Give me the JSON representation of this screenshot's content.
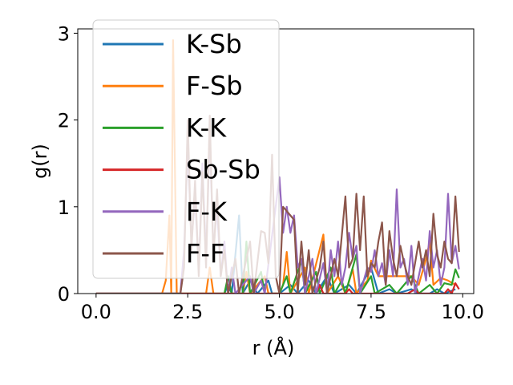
{
  "chart_data": {
    "type": "line",
    "title": "",
    "xlabel": "r (Å)",
    "ylabel": "g(r)",
    "xlim": [
      -0.5,
      10.3
    ],
    "ylim": [
      0,
      3.05
    ],
    "xticks": [
      0.0,
      2.5,
      5.0,
      7.5,
      10.0
    ],
    "xtick_labels": [
      "0.0",
      "2.5",
      "5.0",
      "7.5",
      "10.0"
    ],
    "yticks": [
      0,
      1,
      2,
      3
    ],
    "ytick_labels": [
      "0",
      "1",
      "2",
      "3"
    ],
    "grid": false,
    "legend_position": "upper-left",
    "series": [
      {
        "name": "K-Sb",
        "color": "#1f77b4",
        "points": [
          [
            0.0,
            0
          ],
          [
            3.5,
            0
          ],
          [
            3.6,
            0.1
          ],
          [
            3.7,
            0
          ],
          [
            3.9,
            0.9
          ],
          [
            4.0,
            0
          ],
          [
            4.2,
            0.15
          ],
          [
            4.4,
            0
          ],
          [
            4.7,
            0.15
          ],
          [
            4.8,
            0
          ],
          [
            5.0,
            0
          ],
          [
            5.3,
            0.1
          ],
          [
            5.5,
            0
          ],
          [
            5.8,
            0.15
          ],
          [
            6.0,
            0
          ],
          [
            6.3,
            0.2
          ],
          [
            6.5,
            0
          ],
          [
            6.9,
            0.1
          ],
          [
            7.1,
            0
          ],
          [
            7.5,
            0.3
          ],
          [
            7.7,
            0
          ],
          [
            8.0,
            0.05
          ],
          [
            8.2,
            0
          ],
          [
            8.6,
            0.05
          ],
          [
            8.8,
            0
          ],
          [
            9.1,
            0
          ],
          [
            9.3,
            0.05
          ],
          [
            9.5,
            0
          ],
          [
            9.8,
            0.05
          ]
        ]
      },
      {
        "name": "F-Sb",
        "color": "#ff7f0e",
        "points": [
          [
            0.0,
            0
          ],
          [
            1.8,
            0
          ],
          [
            1.9,
            0.15
          ],
          [
            2.0,
            0.9
          ],
          [
            2.05,
            0
          ],
          [
            2.1,
            2.92
          ],
          [
            2.2,
            0
          ],
          [
            3.0,
            0
          ],
          [
            3.1,
            0.3
          ],
          [
            3.2,
            0
          ],
          [
            4.0,
            0
          ],
          [
            4.1,
            0.25
          ],
          [
            4.2,
            0
          ],
          [
            4.6,
            0.2
          ],
          [
            4.7,
            0
          ],
          [
            5.0,
            0
          ],
          [
            5.1,
            0.1
          ],
          [
            5.2,
            0.48
          ],
          [
            5.3,
            0
          ],
          [
            5.7,
            0.3
          ],
          [
            5.8,
            0
          ],
          [
            6.2,
            0.68
          ],
          [
            6.3,
            0
          ],
          [
            6.6,
            0.2
          ],
          [
            6.8,
            0
          ],
          [
            7.0,
            0.28
          ],
          [
            7.1,
            0
          ],
          [
            7.4,
            0.15
          ],
          [
            7.5,
            0.38
          ],
          [
            7.7,
            0.2
          ],
          [
            8.6,
            0.2
          ],
          [
            8.8,
            0.1
          ],
          [
            9.0,
            0.4
          ],
          [
            9.1,
            0.6
          ],
          [
            9.2,
            0.1
          ],
          [
            9.4,
            0.18
          ],
          [
            9.6,
            0.15
          ],
          [
            9.8,
            0.1
          ]
        ]
      },
      {
        "name": "K-K",
        "color": "#2ca02c",
        "points": [
          [
            0.0,
            0
          ],
          [
            3.5,
            0
          ],
          [
            3.6,
            0.2
          ],
          [
            3.7,
            0
          ],
          [
            4.0,
            0
          ],
          [
            4.1,
            0.6
          ],
          [
            4.2,
            0
          ],
          [
            4.5,
            0.25
          ],
          [
            4.6,
            0
          ],
          [
            5.0,
            0
          ],
          [
            5.2,
            0.2
          ],
          [
            5.3,
            0
          ],
          [
            5.6,
            0.38
          ],
          [
            5.7,
            0
          ],
          [
            6.0,
            0.25
          ],
          [
            6.1,
            0
          ],
          [
            6.4,
            0.3
          ],
          [
            6.5,
            0
          ],
          [
            6.7,
            0.15
          ],
          [
            6.8,
            0
          ],
          [
            7.1,
            0.45
          ],
          [
            7.2,
            0
          ],
          [
            7.5,
            0.2
          ],
          [
            7.6,
            0
          ],
          [
            8.0,
            0.1
          ],
          [
            8.2,
            0
          ],
          [
            8.6,
            0.2
          ],
          [
            8.8,
            0
          ],
          [
            9.1,
            0.1
          ],
          [
            9.3,
            0
          ],
          [
            9.5,
            0.12
          ],
          [
            9.7,
            0.1
          ],
          [
            9.8,
            0.28
          ],
          [
            9.9,
            0.18
          ]
        ]
      },
      {
        "name": "Sb-Sb",
        "color": "#d62728",
        "points": [
          [
            0.0,
            0
          ],
          [
            6.0,
            0
          ],
          [
            6.1,
            0.1
          ],
          [
            6.2,
            0
          ],
          [
            6.8,
            0
          ],
          [
            6.9,
            0.05
          ],
          [
            7.0,
            0
          ],
          [
            8.5,
            0
          ],
          [
            8.7,
            0.05
          ],
          [
            8.8,
            0
          ],
          [
            9.5,
            0
          ],
          [
            9.6,
            0.05
          ],
          [
            9.7,
            0
          ],
          [
            9.8,
            0.12
          ],
          [
            9.9,
            0.05
          ]
        ]
      },
      {
        "name": "F-K",
        "color": "#9467bd",
        "points": [
          [
            0.0,
            0
          ],
          [
            2.3,
            0
          ],
          [
            2.4,
            0.5
          ],
          [
            2.5,
            1.7
          ],
          [
            2.6,
            0.6
          ],
          [
            2.7,
            1.1
          ],
          [
            2.8,
            0.3
          ],
          [
            2.9,
            1.5
          ],
          [
            3.0,
            0.4
          ],
          [
            3.1,
            1.8
          ],
          [
            3.2,
            0.5
          ],
          [
            3.3,
            1.0
          ],
          [
            3.4,
            0.2
          ],
          [
            3.5,
            0.6
          ],
          [
            3.6,
            0
          ],
          [
            3.7,
            0.3
          ],
          [
            3.8,
            0
          ],
          [
            4.2,
            0.2
          ],
          [
            4.3,
            0
          ],
          [
            4.5,
            0.15
          ],
          [
            4.6,
            0
          ],
          [
            5.0,
            1.34
          ],
          [
            5.1,
            0.7
          ],
          [
            5.2,
            1.0
          ],
          [
            5.3,
            0.7
          ],
          [
            5.4,
            0.9
          ],
          [
            5.5,
            0.3
          ],
          [
            5.6,
            0.4
          ],
          [
            5.7,
            0
          ],
          [
            5.9,
            0.4
          ],
          [
            6.0,
            0
          ],
          [
            6.2,
            0.35
          ],
          [
            6.3,
            0
          ],
          [
            6.4,
            0.5
          ],
          [
            6.5,
            0.2
          ],
          [
            6.6,
            0.6
          ],
          [
            6.7,
            0.1
          ],
          [
            6.8,
            0.3
          ],
          [
            6.9,
            0.7
          ],
          [
            7.0,
            0.4
          ],
          [
            7.1,
            0.55
          ],
          [
            7.2,
            0
          ],
          [
            7.4,
            0.3
          ],
          [
            7.5,
            0.25
          ],
          [
            7.6,
            0.5
          ],
          [
            7.7,
            0.2
          ],
          [
            7.8,
            0.35
          ],
          [
            7.9,
            0.1
          ],
          [
            8.0,
            0.5
          ],
          [
            8.1,
            0.2
          ],
          [
            8.2,
            1.2
          ],
          [
            8.3,
            0.3
          ],
          [
            8.4,
            0.4
          ],
          [
            8.5,
            0.1
          ],
          [
            8.6,
            0.55
          ],
          [
            8.7,
            0
          ],
          [
            8.9,
            0.4
          ],
          [
            9.0,
            0.15
          ],
          [
            9.1,
            0.72
          ],
          [
            9.2,
            0.3
          ],
          [
            9.3,
            0.5
          ],
          [
            9.4,
            0.1
          ],
          [
            9.5,
            0.3
          ],
          [
            9.6,
            1.15
          ],
          [
            9.7,
            0.35
          ],
          [
            9.8,
            0.55
          ],
          [
            9.9,
            0.28
          ]
        ]
      },
      {
        "name": "F-F",
        "color": "#8c564b",
        "points": [
          [
            0.0,
            0
          ],
          [
            2.3,
            0
          ],
          [
            2.4,
            0.3
          ],
          [
            2.5,
            2.0
          ],
          [
            2.6,
            0.5
          ],
          [
            2.7,
            1.3
          ],
          [
            2.8,
            0.2
          ],
          [
            2.9,
            1.4
          ],
          [
            3.0,
            0.3
          ],
          [
            3.1,
            2.05
          ],
          [
            3.2,
            0.4
          ],
          [
            3.3,
            1.2
          ],
          [
            3.4,
            0.2
          ],
          [
            3.5,
            0.5
          ],
          [
            3.6,
            0
          ],
          [
            3.8,
            0.4
          ],
          [
            3.9,
            0
          ],
          [
            4.2,
            0.6
          ],
          [
            4.3,
            0
          ],
          [
            4.5,
            0.72
          ],
          [
            4.6,
            0.7
          ],
          [
            4.7,
            0.35
          ],
          [
            4.8,
            1.6
          ],
          [
            4.9,
            0.2
          ],
          [
            5.0,
            0
          ],
          [
            5.1,
            1.0
          ],
          [
            5.2,
            0.95
          ],
          [
            5.3,
            0.9
          ],
          [
            5.4,
            0.85
          ],
          [
            5.5,
            0
          ],
          [
            5.6,
            0.6
          ],
          [
            5.7,
            0.1
          ],
          [
            5.8,
            0.5
          ],
          [
            5.9,
            0
          ],
          [
            6.1,
            0.3
          ],
          [
            6.2,
            0.6
          ],
          [
            6.3,
            0
          ],
          [
            6.5,
            0.4
          ],
          [
            6.6,
            0.2
          ],
          [
            6.8,
            1.12
          ],
          [
            6.9,
            0.3
          ],
          [
            7.0,
            0.4
          ],
          [
            7.1,
            1.15
          ],
          [
            7.2,
            0.5
          ],
          [
            7.3,
            1.12
          ],
          [
            7.4,
            0.2
          ],
          [
            7.5,
            0.35
          ],
          [
            7.6,
            0.3
          ],
          [
            7.7,
            0.6
          ],
          [
            7.8,
            0.82
          ],
          [
            7.9,
            0.1
          ],
          [
            8.0,
            0.72
          ],
          [
            8.1,
            0.4
          ],
          [
            8.2,
            0.2
          ],
          [
            8.3,
            0.55
          ],
          [
            8.4,
            0.35
          ],
          [
            8.5,
            0.2
          ],
          [
            8.6,
            0.1
          ],
          [
            8.8,
            0.6
          ],
          [
            8.9,
            0.3
          ],
          [
            9.0,
            0.5
          ],
          [
            9.1,
            0.2
          ],
          [
            9.2,
            0.92
          ],
          [
            9.3,
            0.45
          ],
          [
            9.4,
            0.3
          ],
          [
            9.5,
            0.6
          ],
          [
            9.6,
            0.4
          ],
          [
            9.7,
            0.35
          ],
          [
            9.8,
            1.12
          ],
          [
            9.9,
            0.48
          ]
        ]
      }
    ]
  }
}
